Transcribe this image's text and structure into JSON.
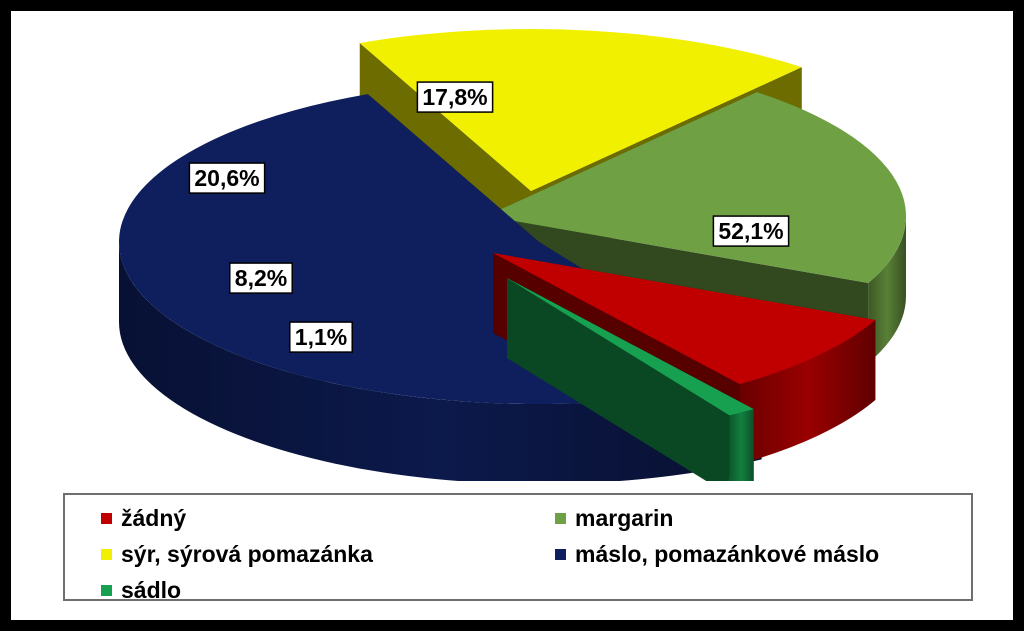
{
  "chart_data": {
    "type": "pie",
    "style": "3d-exploded",
    "slices": [
      {
        "label": "máslo, pomazánkové máslo",
        "value": 52.1,
        "value_label": "52,1%",
        "color": "#0f1f5e"
      },
      {
        "label": "sýr, sýrová pomazánka",
        "value": 17.8,
        "value_label": "17,8%",
        "color": "#f0f000"
      },
      {
        "label": "margarin",
        "value": 20.6,
        "value_label": "20,6%",
        "color": "#6fa044"
      },
      {
        "label": "žádný",
        "value": 8.2,
        "value_label": "8,2%",
        "color": "#c00000"
      },
      {
        "label": "sádlo",
        "value": 1.1,
        "value_label": "1,1%",
        "color": "#17a050"
      }
    ],
    "legend": {
      "placement": "bottom",
      "items": [
        {
          "label": "žádný",
          "color": "#c00000"
        },
        {
          "label": "margarin",
          "color": "#6fa044"
        },
        {
          "label": "sýr, sýrová pomazánka",
          "color": "#f0f000"
        },
        {
          "label": "máslo, pomazánkové máslo",
          "color": "#0f1f5e"
        },
        {
          "label": "sádlo",
          "color": "#17a050"
        }
      ]
    }
  }
}
